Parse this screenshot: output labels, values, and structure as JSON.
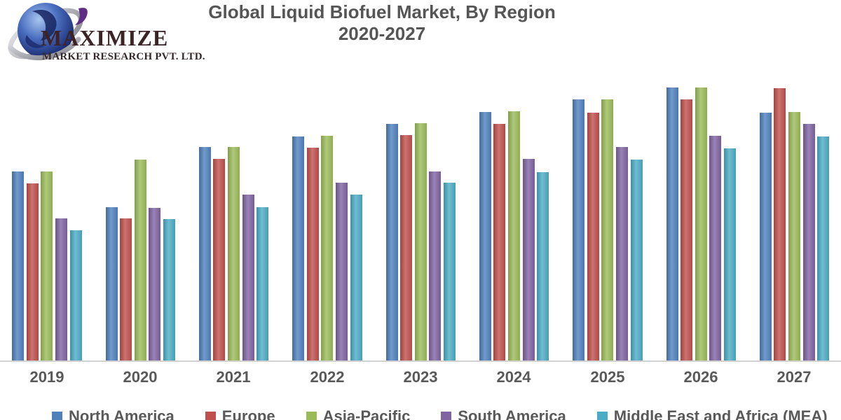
{
  "logo": {
    "brand": "MAXIMIZE",
    "subtitle": "MARKET RESEARCH PVT. LTD.",
    "icon": "globe-with-silver-swoosh"
  },
  "header": {
    "title_line1": "Global Liquid Biofuel Market, By Region",
    "title_line2": "2020-2027"
  },
  "colors": {
    "title_text": "#555555",
    "axis_label_text": "#595959",
    "axis_line": "#d2d2d2",
    "north_america": "#4F81BD",
    "europe": "#C0504D",
    "asia_pacific": "#9BBB59",
    "south_america": "#8064A2",
    "mea": "#4BACC6"
  },
  "chart_data": {
    "type": "bar",
    "title": "Global Liquid Biofuel Market, By Region 2020-2027",
    "xlabel": "",
    "ylabel": "",
    "y_axis_visible": false,
    "gridlines": false,
    "legend_position": "bottom",
    "value_unit": "relative-height-px (no value axis shown in image)",
    "categories": [
      "2019",
      "2020",
      "2021",
      "2022",
      "2023",
      "2024",
      "2025",
      "2026",
      "2027"
    ],
    "series": [
      {
        "name": "North America",
        "color": "#4F81BD",
        "values": [
          270,
          219,
          305,
          320,
          338,
          355,
          373,
          390,
          354
        ]
      },
      {
        "name": "Europe",
        "color": "#C0504D",
        "values": [
          253,
          203,
          288,
          304,
          322,
          338,
          354,
          373,
          389
        ]
      },
      {
        "name": "Asia-Pacific",
        "color": "#9BBB59",
        "values": [
          270,
          287,
          305,
          321,
          339,
          356,
          373,
          390,
          355
        ]
      },
      {
        "name": "South America",
        "color": "#8064A2",
        "values": [
          203,
          218,
          237,
          254,
          270,
          288,
          305,
          321,
          338
        ]
      },
      {
        "name": "Middle East and Africa (MEA)",
        "color": "#4BACC6",
        "values": [
          186,
          202,
          219,
          237,
          254,
          269,
          287,
          303,
          320
        ]
      }
    ]
  }
}
